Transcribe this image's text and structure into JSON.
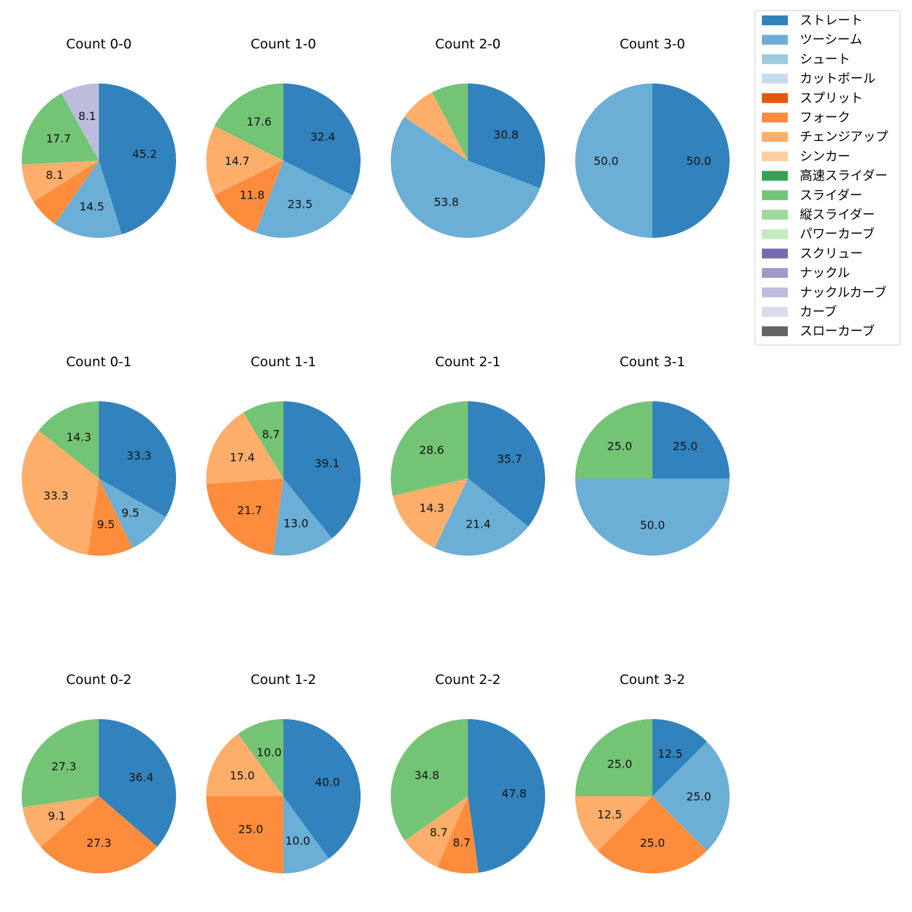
{
  "legend": [
    {
      "label": "ストレート",
      "color": "#3182bd"
    },
    {
      "label": "ツーシーム",
      "color": "#6baed6"
    },
    {
      "label": "シュート",
      "color": "#9ecae1"
    },
    {
      "label": "カットボール",
      "color": "#c6dbef"
    },
    {
      "label": "スプリット",
      "color": "#e6550d"
    },
    {
      "label": "フォーク",
      "color": "#fd8d3c"
    },
    {
      "label": "チェンジアップ",
      "color": "#fdae6b"
    },
    {
      "label": "シンカー",
      "color": "#fdd0a2"
    },
    {
      "label": "高速スライダー",
      "color": "#31a354"
    },
    {
      "label": "スライダー",
      "color": "#74c476"
    },
    {
      "label": "縦スライダー",
      "color": "#a1d99b"
    },
    {
      "label": "パワーカーブ",
      "color": "#c7e9c0"
    },
    {
      "label": "スクリュー",
      "color": "#756bb1"
    },
    {
      "label": "ナックル",
      "color": "#9e9ac8"
    },
    {
      "label": "ナックルカーブ",
      "color": "#bcbddc"
    },
    {
      "label": "カーブ",
      "color": "#dadaeb"
    },
    {
      "label": "スローカーブ",
      "color": "#636363"
    }
  ],
  "chart_data": [
    {
      "type": "pie",
      "title": "Count 0-0",
      "slices": [
        {
          "pitch": "ストレート",
          "value": 45.2,
          "label": "45.2"
        },
        {
          "pitch": "ツーシーム",
          "value": 14.5,
          "label": "14.5"
        },
        {
          "pitch": "フォーク",
          "value": 6.4,
          "label": ""
        },
        {
          "pitch": "チェンジアップ",
          "value": 8.1,
          "label": "8.1"
        },
        {
          "pitch": "スライダー",
          "value": 17.7,
          "label": "17.7"
        },
        {
          "pitch": "ナックルカーブ",
          "value": 8.1,
          "label": "8.1"
        }
      ]
    },
    {
      "type": "pie",
      "title": "Count 1-0",
      "slices": [
        {
          "pitch": "ストレート",
          "value": 32.4,
          "label": "32.4"
        },
        {
          "pitch": "ツーシーム",
          "value": 23.5,
          "label": "23.5"
        },
        {
          "pitch": "フォーク",
          "value": 11.8,
          "label": "11.8"
        },
        {
          "pitch": "チェンジアップ",
          "value": 14.7,
          "label": "14.7"
        },
        {
          "pitch": "スライダー",
          "value": 17.6,
          "label": "17.6"
        }
      ]
    },
    {
      "type": "pie",
      "title": "Count 2-0",
      "slices": [
        {
          "pitch": "ストレート",
          "value": 30.8,
          "label": "30.8"
        },
        {
          "pitch": "ツーシーム",
          "value": 53.8,
          "label": "53.8"
        },
        {
          "pitch": "チェンジアップ",
          "value": 7.7,
          "label": ""
        },
        {
          "pitch": "スライダー",
          "value": 7.7,
          "label": ""
        }
      ]
    },
    {
      "type": "pie",
      "title": "Count 3-0",
      "slices": [
        {
          "pitch": "ストレート",
          "value": 50.0,
          "label": "50.0"
        },
        {
          "pitch": "ツーシーム",
          "value": 50.0,
          "label": "50.0"
        }
      ]
    },
    {
      "type": "pie",
      "title": "Count 0-1",
      "slices": [
        {
          "pitch": "ストレート",
          "value": 33.3,
          "label": "33.3"
        },
        {
          "pitch": "ツーシーム",
          "value": 9.5,
          "label": "9.5"
        },
        {
          "pitch": "フォーク",
          "value": 9.5,
          "label": "9.5"
        },
        {
          "pitch": "チェンジアップ",
          "value": 33.3,
          "label": "33.3"
        },
        {
          "pitch": "スライダー",
          "value": 14.3,
          "label": "14.3"
        }
      ]
    },
    {
      "type": "pie",
      "title": "Count 1-1",
      "slices": [
        {
          "pitch": "ストレート",
          "value": 39.1,
          "label": "39.1"
        },
        {
          "pitch": "ツーシーム",
          "value": 13.0,
          "label": "13.0"
        },
        {
          "pitch": "フォーク",
          "value": 21.7,
          "label": "21.7"
        },
        {
          "pitch": "チェンジアップ",
          "value": 17.4,
          "label": "17.4"
        },
        {
          "pitch": "スライダー",
          "value": 8.7,
          "label": "8.7"
        }
      ]
    },
    {
      "type": "pie",
      "title": "Count 2-1",
      "slices": [
        {
          "pitch": "ストレート",
          "value": 35.7,
          "label": "35.7"
        },
        {
          "pitch": "ツーシーム",
          "value": 21.4,
          "label": "21.4"
        },
        {
          "pitch": "チェンジアップ",
          "value": 14.3,
          "label": "14.3"
        },
        {
          "pitch": "スライダー",
          "value": 28.6,
          "label": "28.6"
        }
      ]
    },
    {
      "type": "pie",
      "title": "Count 3-1",
      "slices": [
        {
          "pitch": "ストレート",
          "value": 25.0,
          "label": "25.0"
        },
        {
          "pitch": "ツーシーム",
          "value": 50.0,
          "label": "50.0"
        },
        {
          "pitch": "スライダー",
          "value": 25.0,
          "label": "25.0"
        }
      ]
    },
    {
      "type": "pie",
      "title": "Count 0-2",
      "slices": [
        {
          "pitch": "ストレート",
          "value": 36.4,
          "label": "36.4"
        },
        {
          "pitch": "フォーク",
          "value": 27.3,
          "label": "27.3"
        },
        {
          "pitch": "チェンジアップ",
          "value": 9.1,
          "label": "9.1"
        },
        {
          "pitch": "スライダー",
          "value": 27.3,
          "label": "27.3"
        }
      ]
    },
    {
      "type": "pie",
      "title": "Count 1-2",
      "slices": [
        {
          "pitch": "ストレート",
          "value": 40.0,
          "label": "40.0"
        },
        {
          "pitch": "ツーシーム",
          "value": 10.0,
          "label": "10.0"
        },
        {
          "pitch": "フォーク",
          "value": 25.0,
          "label": "25.0"
        },
        {
          "pitch": "チェンジアップ",
          "value": 15.0,
          "label": "15.0"
        },
        {
          "pitch": "スライダー",
          "value": 10.0,
          "label": "10.0"
        }
      ]
    },
    {
      "type": "pie",
      "title": "Count 2-2",
      "slices": [
        {
          "pitch": "ストレート",
          "value": 47.8,
          "label": "47.8"
        },
        {
          "pitch": "フォーク",
          "value": 8.7,
          "label": "8.7"
        },
        {
          "pitch": "チェンジアップ",
          "value": 8.7,
          "label": "8.7"
        },
        {
          "pitch": "スライダー",
          "value": 34.8,
          "label": "34.8"
        }
      ]
    },
    {
      "type": "pie",
      "title": "Count 3-2",
      "slices": [
        {
          "pitch": "ストレート",
          "value": 12.5,
          "label": "12.5"
        },
        {
          "pitch": "ツーシーム",
          "value": 25.0,
          "label": "25.0"
        },
        {
          "pitch": "フォーク",
          "value": 25.0,
          "label": "25.0"
        },
        {
          "pitch": "チェンジアップ",
          "value": 12.5,
          "label": "12.5"
        },
        {
          "pitch": "スライダー",
          "value": 25.0,
          "label": "25.0"
        }
      ]
    }
  ]
}
